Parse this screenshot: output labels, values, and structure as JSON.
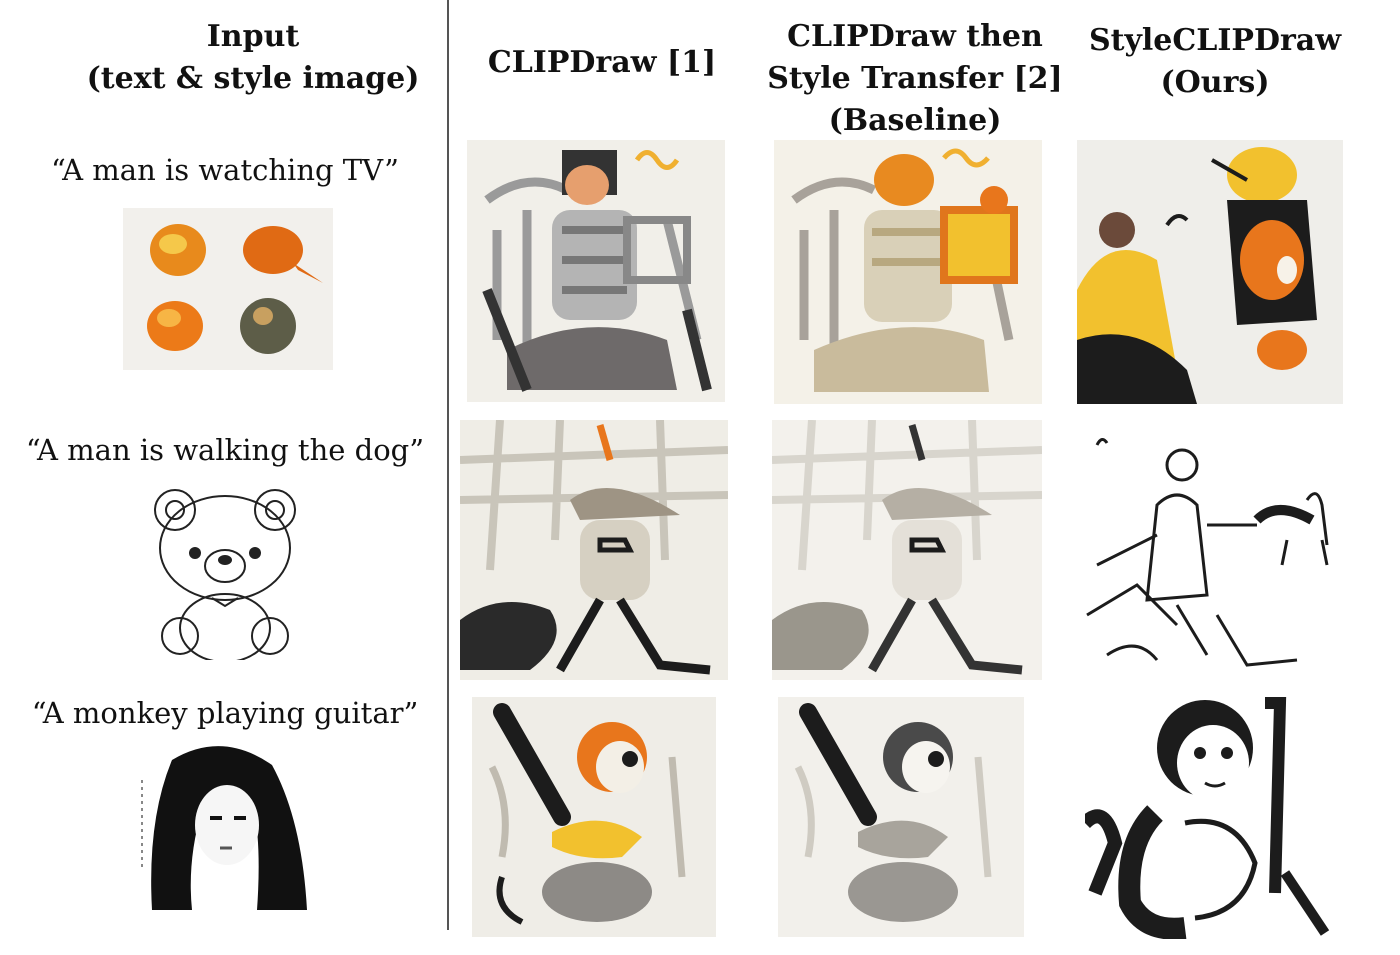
{
  "headers": {
    "input": "Input\n(text & style image)",
    "clipdraw": "CLIPDraw  [1]",
    "baseline": "CLIPDraw  then\nStyle Transfer [2]\n(Baseline)",
    "ours": "StyleCLIPDraw\n(Ours)"
  },
  "rows": [
    {
      "prompt": "“A man is watching  TV”"
    },
    {
      "prompt": "“A man is walking  the dog”"
    },
    {
      "prompt": "“A monkey  playing  guitar”"
    }
  ],
  "colors": {
    "orange": "#e8761c",
    "yellow": "#f2c12e",
    "ink": "#1c1c1c",
    "gray": "#8a8a8a",
    "divider": "#555555"
  }
}
